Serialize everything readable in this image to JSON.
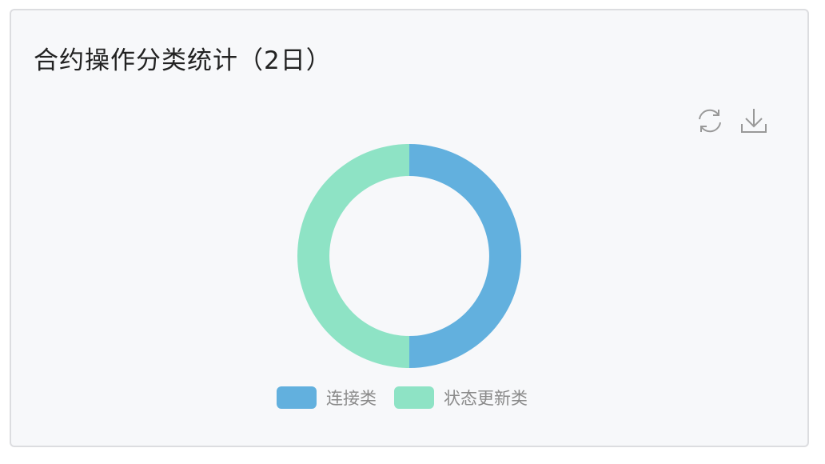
{
  "title": "合约操作分类统计（2日）",
  "toolbar": {
    "refresh_icon": "refresh-icon",
    "download_icon": "download-icon"
  },
  "chart_data": {
    "type": "pie",
    "variant": "donut",
    "title": "合约操作分类统计（2日）",
    "categories": [
      "连接类",
      "状态更新类"
    ],
    "values_percent": [
      50,
      50
    ],
    "colors": [
      "#62b0de",
      "#8ee3c5"
    ],
    "legend": "bottom"
  }
}
